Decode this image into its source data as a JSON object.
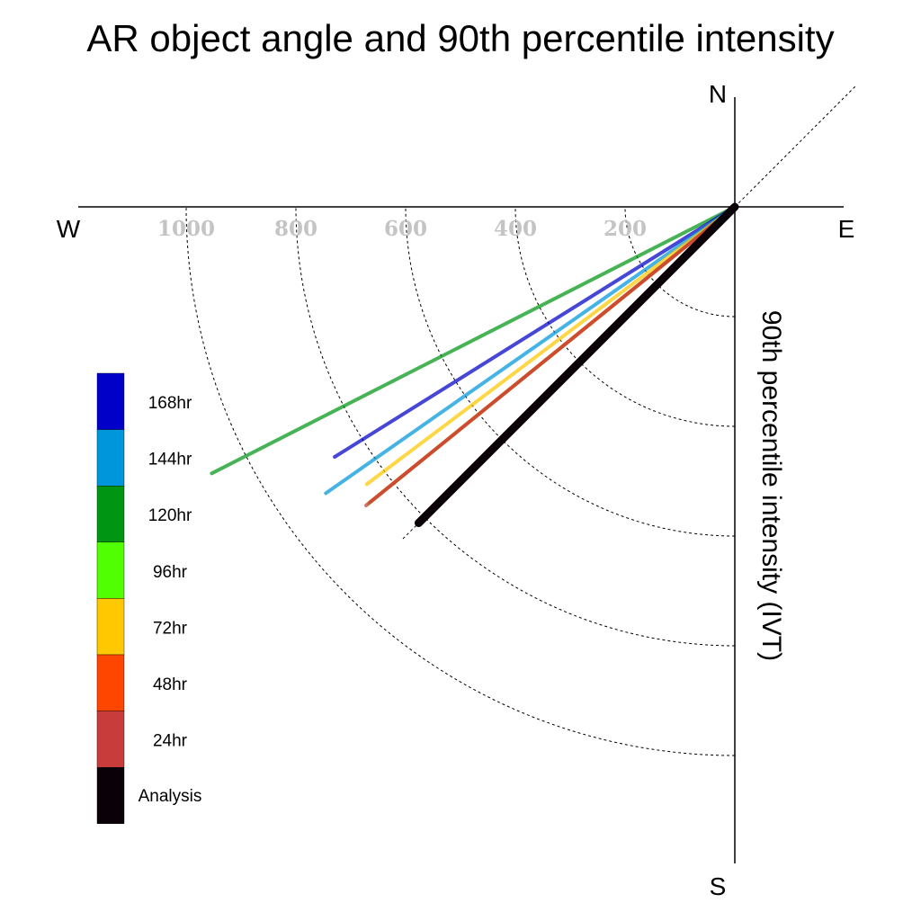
{
  "chart_data": {
    "type": "polar-vector",
    "title": "AR object angle and 90th percentile intensity",
    "ylabel": "90th percentile intensity (IVT)",
    "compass": {
      "north": "N",
      "south": "S",
      "east": "E",
      "west": "W"
    },
    "radial_ticks": [
      200,
      400,
      600,
      800,
      1000
    ],
    "radial_tick_labels": [
      "200",
      "400",
      "600",
      "800",
      "1000"
    ],
    "rlim": [
      0,
      1200
    ],
    "angle_reference": "degrees clockwise from north",
    "reference_direction_deg": 225,
    "series": [
      {
        "name": "168hr",
        "color": "#0000c8",
        "angle_deg": 238,
        "intensity": 860
      },
      {
        "name": "144hr",
        "color": "#0096dc",
        "angle_deg": 235,
        "intensity": 910
      },
      {
        "name": "120hr",
        "color": "#009614",
        "angle_deg": 243,
        "intensity": 1070
      },
      {
        "name": "96hr",
        "color": "#50ff00",
        "angle_deg": 231,
        "intensity": 860
      },
      {
        "name": "72hr",
        "color": "#ffc800",
        "angle_deg": 233,
        "intensity": 840
      },
      {
        "name": "48hr",
        "color": "#ff4600",
        "angle_deg": 231,
        "intensity": 855
      },
      {
        "name": "24hr",
        "color": "#c83c3c",
        "angle_deg": 231,
        "intensity": 865
      },
      {
        "name": "Analysis",
        "color": "#0a0008",
        "angle_deg": 225,
        "intensity": 815
      }
    ],
    "legend_order": [
      "168hr",
      "144hr",
      "120hr",
      "96hr",
      "72hr",
      "48hr",
      "24hr",
      "Analysis"
    ],
    "legend_placement": "left"
  }
}
